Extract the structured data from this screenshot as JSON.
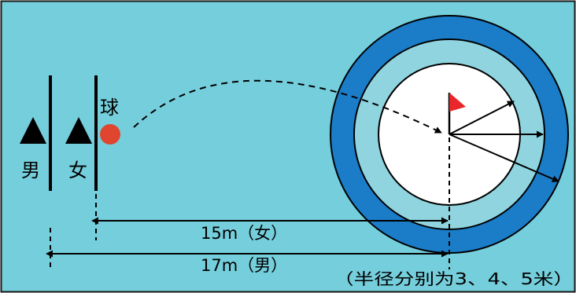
{
  "labels": {
    "male": "男",
    "female": "女",
    "ball": "球",
    "dist_female": "15m（女）",
    "dist_male": "17m（男）",
    "radius_note": "（半径分别为3、4、5米）"
  },
  "colors": {
    "field": "#75cedb",
    "outer_ring": "#1b7cc8",
    "middle_ring": "#8fd4df",
    "inner_circle": "#ffffff",
    "ball": "#e0452f",
    "flag": "#e8262b",
    "ink": "#000000"
  },
  "icons": {
    "male_marker": "triangle-icon",
    "female_marker": "triangle-icon",
    "flag": "flag-icon"
  }
}
